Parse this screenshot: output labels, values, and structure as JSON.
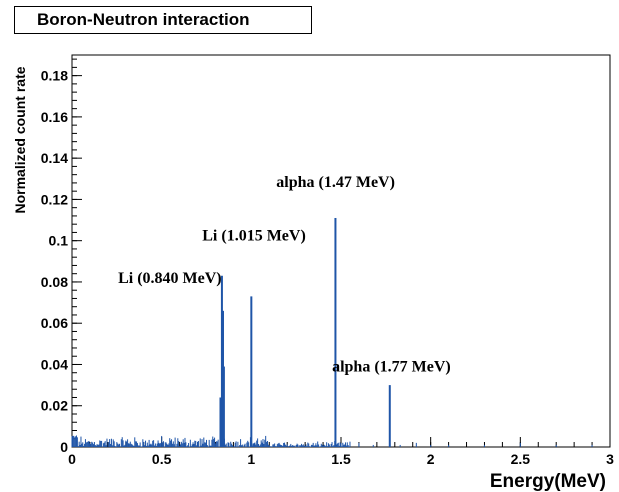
{
  "chart_data": {
    "type": "bar",
    "title": "Boron-Neutron interaction",
    "xlabel": "Energy(MeV)",
    "ylabel": "Normalized count rate",
    "xlim": [
      0,
      3
    ],
    "ylim": [
      0,
      0.19
    ],
    "x_ticks": [
      "0",
      "0.5",
      "1",
      "1.5",
      "2",
      "2.5",
      "3"
    ],
    "y_ticks": [
      "0",
      "0.02",
      "0.04",
      "0.06",
      "0.08",
      "0.1",
      "0.12",
      "0.14",
      "0.16",
      "0.18"
    ],
    "series_color": "#1f55a8",
    "grid": false,
    "annotations": [
      {
        "text": "Li (0.840 MeV)",
        "x": 0.84,
        "y": 0.0795
      },
      {
        "text": "Li (1.015 MeV)",
        "x": 1.015,
        "y": 0.1
      },
      {
        "text": "alpha (1.47 MeV)",
        "x": 1.47,
        "y": 0.126
      },
      {
        "text": "alpha (1.77 MeV)",
        "x": 1.77,
        "y": 0.0365
      }
    ],
    "peaks": [
      {
        "x": 0.828,
        "y": 0.024
      },
      {
        "x": 0.836,
        "y": 0.083
      },
      {
        "x": 0.842,
        "y": 0.066
      },
      {
        "x": 0.847,
        "y": 0.039
      },
      {
        "x": 1.0,
        "y": 0.073
      },
      {
        "x": 1.469,
        "y": 0.111
      },
      {
        "x": 1.772,
        "y": 0.03
      }
    ],
    "noise": {
      "x_start": 0.0,
      "x_end": 1.55,
      "bin": 0.005,
      "max_y": 0.006
    },
    "sparse": [
      {
        "x": 1.6,
        "y": 0.002
      },
      {
        "x": 1.68,
        "y": 0.001
      },
      {
        "x": 1.83,
        "y": 0.001
      },
      {
        "x": 1.92,
        "y": 0.002
      },
      {
        "x": 2.0,
        "y": 0.001
      },
      {
        "x": 2.1,
        "y": 0.001
      },
      {
        "x": 2.3,
        "y": 0.001
      },
      {
        "x": 2.5,
        "y": 0.002
      },
      {
        "x": 2.7,
        "y": 0.001
      },
      {
        "x": 2.9,
        "y": 0.001
      }
    ]
  }
}
